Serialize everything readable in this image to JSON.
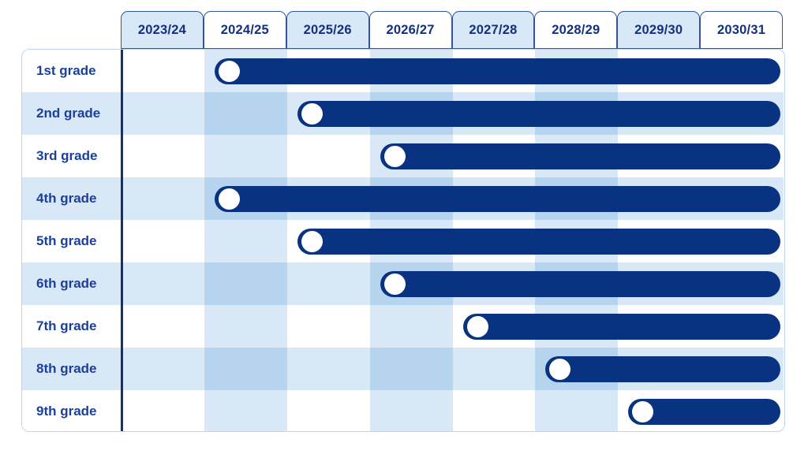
{
  "columns": [
    "2023/24",
    "2024/25",
    "2025/26",
    "2026/27",
    "2027/28",
    "2028/29",
    "2029/30",
    "2030/31"
  ],
  "rows": [
    {
      "label": "1st grade",
      "start": "2024/25",
      "end": "2030/31"
    },
    {
      "label": "2nd grade",
      "start": "2025/26",
      "end": "2030/31"
    },
    {
      "label": "3rd grade",
      "start": "2026/27",
      "end": "2030/31"
    },
    {
      "label": "4th grade",
      "start": "2024/25",
      "end": "2030/31"
    },
    {
      "label": "5th grade",
      "start": "2025/26",
      "end": "2030/31"
    },
    {
      "label": "6th grade",
      "start": "2026/27",
      "end": "2030/31"
    },
    {
      "label": "7th grade",
      "start": "2027/28",
      "end": "2030/31"
    },
    {
      "label": "8th grade",
      "start": "2028/29",
      "end": "2030/31"
    },
    {
      "label": "9th grade",
      "start": "2029/30",
      "end": "2030/31"
    }
  ],
  "header_tinted_columns": [
    "2023/24",
    "2025/26",
    "2027/28",
    "2029/30"
  ],
  "body_striped_columns": [
    "2024/25",
    "2026/27",
    "2028/29"
  ],
  "tinted_rows": [
    "2nd grade",
    "4th grade",
    "6th grade",
    "8th grade"
  ],
  "colors": {
    "bar": "#093381",
    "dot": "#ffffff",
    "tint": "#d9e8f7",
    "tint_double": "#b6d4ee",
    "header_border": "#33549e",
    "header_text": "#13317e",
    "label_text": "#1b3f9b",
    "table_border": "#bdd5ee",
    "axis": "#123370",
    "background": "#ffffff"
  },
  "chart_data": {
    "type": "bar",
    "subtype": "gantt-timeline",
    "orientation": "horizontal",
    "title": "",
    "xlabel": "",
    "ylabel": "",
    "legend": false,
    "grid": "alternating row and column shading",
    "categories": [
      "1st grade",
      "2nd grade",
      "3rd grade",
      "4th grade",
      "5th grade",
      "6th grade",
      "7th grade",
      "8th grade",
      "9th grade"
    ],
    "x_labels": [
      "2023/24",
      "2024/25",
      "2025/26",
      "2026/27",
      "2027/28",
      "2028/29",
      "2029/30",
      "2030/31"
    ],
    "bars": [
      {
        "category": "1st grade",
        "start": "2024/25",
        "end": "2030/31"
      },
      {
        "category": "2nd grade",
        "start": "2025/26",
        "end": "2030/31"
      },
      {
        "category": "3rd grade",
        "start": "2026/27",
        "end": "2030/31"
      },
      {
        "category": "4th grade",
        "start": "2024/25",
        "end": "2030/31"
      },
      {
        "category": "5th grade",
        "start": "2025/26",
        "end": "2030/31"
      },
      {
        "category": "6th grade",
        "start": "2026/27",
        "end": "2030/31"
      },
      {
        "category": "7th grade",
        "start": "2027/28",
        "end": "2030/31"
      },
      {
        "category": "8th grade",
        "start": "2028/29",
        "end": "2030/31"
      },
      {
        "category": "9th grade",
        "start": "2029/30",
        "end": "2030/31"
      }
    ],
    "bar_marker": "white circle at bar start"
  }
}
